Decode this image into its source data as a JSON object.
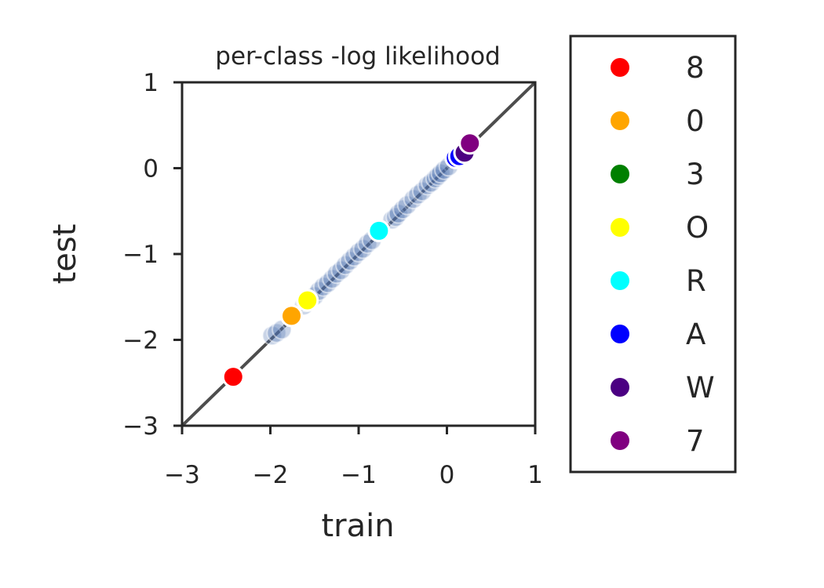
{
  "chart_data": {
    "type": "scatter",
    "title": "per-class -log likelihood",
    "xlabel": "train",
    "ylabel": "test",
    "xlim": [
      -3,
      1
    ],
    "ylim": [
      -3,
      1
    ],
    "xticks": [
      -3,
      -2,
      -1,
      0,
      1
    ],
    "yticks": [
      -3,
      -2,
      -1,
      0,
      1
    ],
    "xtick_labels": [
      "−3",
      "−2",
      "−1",
      "0",
      "1"
    ],
    "ytick_labels": [
      "−3",
      "−2",
      "−1",
      "0",
      "1"
    ],
    "grid": false,
    "legend_placement": "outside-right",
    "reference_line": {
      "from": [
        -3,
        -3
      ],
      "to": [
        1,
        1
      ],
      "color": "#4d4d4d"
    },
    "background_points": {
      "color": "#4c72b0",
      "x": [
        -1.98,
        -1.93,
        -1.87,
        -1.62,
        -1.6,
        -1.55,
        -1.5,
        -1.45,
        -1.4,
        -1.35,
        -1.3,
        -1.25,
        -1.2,
        -1.15,
        -1.1,
        -1.05,
        -1.0,
        -0.95,
        -0.9,
        -0.85,
        -0.62,
        -0.58,
        -0.55,
        -0.5,
        -0.45,
        -0.38,
        -0.33,
        -0.28,
        -0.22,
        -0.18,
        -0.13,
        -0.1,
        -0.07,
        -0.03,
        0.02
      ],
      "y": [
        -1.95,
        -1.92,
        -1.88,
        -1.6,
        -1.56,
        -1.53,
        -1.49,
        -1.43,
        -1.38,
        -1.34,
        -1.29,
        -1.23,
        -1.19,
        -1.13,
        -1.08,
        -1.03,
        -0.98,
        -0.94,
        -0.88,
        -0.84,
        -0.6,
        -0.57,
        -0.53,
        -0.48,
        -0.43,
        -0.36,
        -0.31,
        -0.27,
        -0.2,
        -0.17,
        -0.12,
        -0.09,
        -0.06,
        -0.02,
        0.02
      ]
    },
    "series": [
      {
        "name": "8",
        "color": "#ff0000",
        "x": [
          -2.42
        ],
        "y": [
          -2.43
        ]
      },
      {
        "name": "0",
        "color": "#ffa500",
        "x": [
          -1.76
        ],
        "y": [
          -1.72
        ]
      },
      {
        "name": "3",
        "color": "#008000",
        "x": [],
        "y": []
      },
      {
        "name": "O",
        "color": "#ffff00",
        "x": [
          -1.58
        ],
        "y": [
          -1.54
        ]
      },
      {
        "name": "R",
        "color": "#00ffff",
        "x": [
          -0.77
        ],
        "y": [
          -0.73
        ]
      },
      {
        "name": "A",
        "color": "#0000ff",
        "x": [
          0.1,
          0.14
        ],
        "y": [
          0.12,
          0.14
        ]
      },
      {
        "name": "W",
        "color": "#4b0082",
        "x": [
          0.2
        ],
        "y": [
          0.18
        ]
      },
      {
        "name": "7",
        "color": "#800080",
        "x": [
          0.26
        ],
        "y": [
          0.29
        ]
      }
    ]
  }
}
